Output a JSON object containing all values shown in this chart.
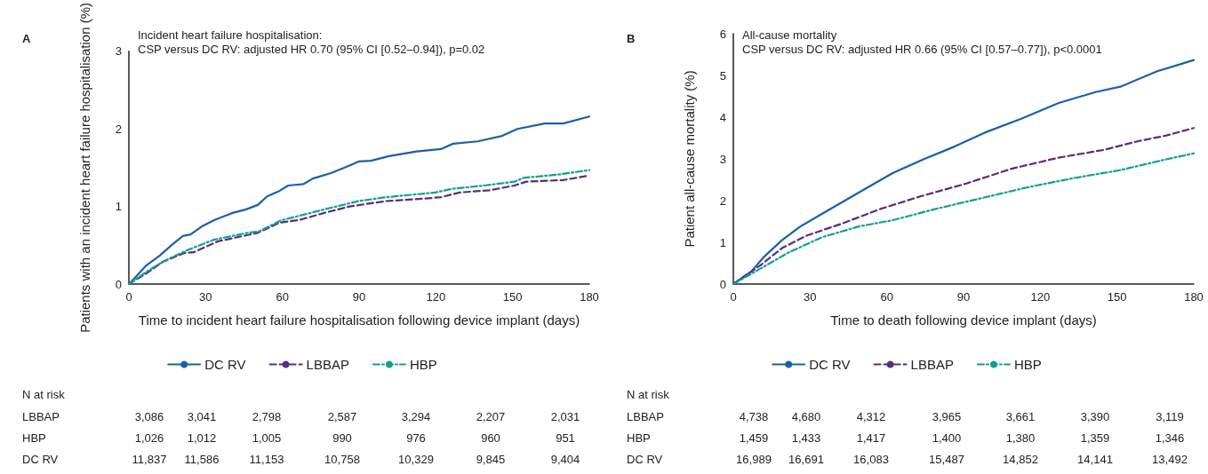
{
  "chart_data": [
    {
      "type": "line",
      "title": "Incident heart failure hospitalisation:",
      "subtitle": "CSP versus DC RV: adjusted HR 0.70 (95% CI [0.52–0.94]), p=0.02",
      "xlabel": "Time to incident heart failure hospitalisation following device implant (days)",
      "ylabel": "Patients with an incident heart failure hospitalisation (%)",
      "xlim": [
        0,
        180
      ],
      "xticks": [
        0,
        30,
        60,
        90,
        120,
        150,
        180
      ],
      "ylim": [
        0,
        3
      ],
      "yticks": [
        0,
        1,
        2,
        3
      ],
      "grid": false,
      "legend": "bottom",
      "marker": "none",
      "series": [
        {
          "name": "DC RV",
          "color": "#1c5fa8",
          "line_style": "solid",
          "x": [
            0,
            2.6,
            6.8,
            12.2,
            17,
            21.1,
            24.1,
            28.9,
            33.7,
            40.8,
            45.6,
            50.4,
            54,
            58.8,
            62.3,
            68.3,
            71.9,
            79,
            85,
            89.8,
            94.6,
            101.7,
            112.5,
            122,
            126.8,
            136.4,
            145.9,
            151.9,
            162.6,
            169.8,
            180
          ],
          "values": [
            0,
            0.09,
            0.24,
            0.37,
            0.51,
            0.62,
            0.64,
            0.75,
            0.83,
            0.92,
            0.96,
            1.02,
            1.13,
            1.2,
            1.27,
            1.29,
            1.36,
            1.43,
            1.51,
            1.58,
            1.59,
            1.65,
            1.71,
            1.74,
            1.81,
            1.84,
            1.91,
            2.0,
            2.07,
            2.07,
            2.16
          ]
        },
        {
          "name": "LBBAP",
          "color": "#5b2c7e",
          "line_style": "dashed",
          "x": [
            0,
            7.4,
            13.4,
            21.7,
            25.3,
            34.8,
            43.2,
            50.4,
            58.8,
            67.1,
            76.7,
            86.2,
            100.6,
            114.9,
            122,
            129.2,
            141.1,
            150.7,
            155.4,
            169.8,
            180
          ],
          "values": [
            0,
            0.15,
            0.29,
            0.4,
            0.41,
            0.55,
            0.61,
            0.66,
            0.79,
            0.83,
            0.92,
            1.0,
            1.07,
            1.1,
            1.12,
            1.18,
            1.21,
            1.27,
            1.32,
            1.34,
            1.4
          ]
        },
        {
          "name": "HBP",
          "color": "#11a08c",
          "line_style": "dashdot",
          "x": [
            0,
            7.4,
            13.4,
            22.3,
            33.1,
            46.2,
            51,
            59.4,
            64.2,
            76.1,
            89.8,
            100.6,
            119.7,
            126.8,
            138.8,
            150.7,
            154.3,
            167.5,
            180
          ],
          "values": [
            0,
            0.17,
            0.29,
            0.43,
            0.57,
            0.66,
            0.68,
            0.82,
            0.86,
            0.96,
            1.07,
            1.12,
            1.18,
            1.23,
            1.27,
            1.32,
            1.37,
            1.41,
            1.47
          ]
        }
      ],
      "annotations": [
        "A",
        "N at risk",
        "LBBAP",
        "3,086",
        "3,041",
        "2,798",
        "2,587",
        "3,294",
        "2,207",
        "2,031",
        "HBP",
        "1,026",
        "1,012",
        "1,005",
        "990",
        "976",
        "960",
        "951",
        "DC RV",
        "11,837",
        "11,586",
        "11,153",
        "10,758",
        "10,329",
        "9,845",
        "9,404"
      ]
    },
    {
      "type": "line",
      "title": "All-cause mortality",
      "subtitle": "CSP versus DC RV: adjusted HR 0.66 (95% CI [0.57–0.77]), p<0.0001",
      "xlabel": "Time to death following device implant (days)",
      "ylabel": "Patient all-cause mortality (%)",
      "xlim": [
        0,
        180
      ],
      "xticks": [
        0,
        30,
        60,
        90,
        120,
        150,
        180
      ],
      "ylim": [
        0,
        6
      ],
      "yticks": [
        0,
        1,
        2,
        3,
        4,
        5,
        6
      ],
      "grid": false,
      "legend": "bottom",
      "marker": "none",
      "series": [
        {
          "name": "DC RV",
          "color": "#1c5fa8",
          "line_style": "solid",
          "x": [
            0,
            7,
            11.8,
            19,
            26.2,
            34.6,
            43,
            52.6,
            62.3,
            74.3,
            86.3,
            98.3,
            112.8,
            127.2,
            141.6,
            151.3,
            165.7,
            175.3,
            180
          ],
          "values": [
            0,
            0.3,
            0.64,
            1.05,
            1.38,
            1.68,
            1.98,
            2.32,
            2.66,
            2.99,
            3.29,
            3.63,
            3.97,
            4.34,
            4.6,
            4.73,
            5.1,
            5.28,
            5.37
          ]
        },
        {
          "name": "LBBAP",
          "color": "#5b2c7e",
          "line_style": "dashed",
          "x": [
            0,
            10.6,
            19,
            28.6,
            43,
            57.5,
            73.1,
            91.1,
            109.1,
            127.2,
            145.2,
            157.2,
            169.2,
            180
          ],
          "values": [
            0,
            0.45,
            0.86,
            1.16,
            1.46,
            1.8,
            2.1,
            2.41,
            2.77,
            3.03,
            3.22,
            3.41,
            3.56,
            3.74
          ]
        },
        {
          "name": "HBP",
          "color": "#11a08c",
          "line_style": "dashdot",
          "x": [
            0,
            10.6,
            21.4,
            34.6,
            49,
            62.3,
            79.1,
            97.1,
            115.1,
            133.1,
            151.3,
            169.2,
            180
          ],
          "values": [
            0,
            0.37,
            0.75,
            1.12,
            1.38,
            1.53,
            1.8,
            2.06,
            2.32,
            2.54,
            2.73,
            2.99,
            3.13
          ]
        }
      ],
      "annotations": [
        "B",
        "N at risk",
        "LBBAP",
        "4,738",
        "4,680",
        "4,312",
        "3,965",
        "3,661",
        "3,390",
        "3,119",
        "HBP",
        "1,459",
        "1,433",
        "1,417",
        "1,400",
        "1,380",
        "1,359",
        "1,346",
        "DC RV",
        "16,989",
        "16,691",
        "16,083",
        "15,487",
        "14,852",
        "14,141",
        "13,492"
      ]
    }
  ]
}
